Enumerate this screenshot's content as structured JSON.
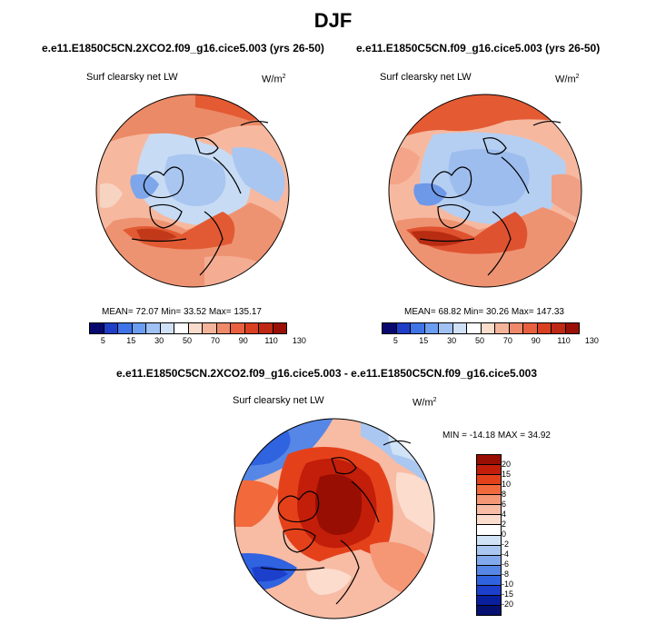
{
  "figure": {
    "season": "DJF",
    "panel_left": {
      "case": "e.e11.E1850C5CN.2XCO2.f09_g16.cice5.003 (yrs 26-50)",
      "variable": "Surf clearsky net LW",
      "units": "W/m",
      "units_exp": "2",
      "stats": "MEAN=  72.07  Min=  33.52  Max= 135.17"
    },
    "panel_right": {
      "case": "e.e11.E1850C5CN.f09_g16.cice5.003 (yrs 26-50)",
      "variable": "Surf clearsky net LW",
      "units": "W/m",
      "units_exp": "2",
      "stats": "MEAN=  68.82  Min=  30.26  Max= 147.33"
    },
    "panel_diff": {
      "case": "e.e11.E1850C5CN.2XCO2.f09_g16.cice5.003 - e.e11.E1850C5CN.f09_g16.cice5.003",
      "variable": "Surf clearsky net LW",
      "units": "W/m",
      "units_exp": "2",
      "stats": "MIN = -14.18 MAX =  34.92"
    },
    "colorbar_abs": {
      "ticks": [
        "5",
        "15",
        "30",
        "50",
        "70",
        "90",
        "110",
        "130"
      ],
      "colors": [
        "#08086e",
        "#1f3ec7",
        "#3f73e6",
        "#6b9df0",
        "#9fc1f3",
        "#cfe0f7",
        "#ffffff",
        "#f9dccb",
        "#f4b49a",
        "#ee8a6a",
        "#e8603f",
        "#d9401f",
        "#bf2812",
        "#9a0f06"
      ]
    },
    "colorbar_diff": {
      "ticks": [
        "20",
        "15",
        "10",
        "8",
        "6",
        "4",
        "2",
        "0",
        "-2",
        "-4",
        "-6",
        "-8",
        "-10",
        "-15",
        "-20"
      ],
      "colors": [
        "#990e02",
        "#c21e0a",
        "#e4411b",
        "#f26a3c",
        "#f59675",
        "#f8bba4",
        "#fbdccd",
        "#ffffff",
        "#d0e2f5",
        "#a9c7f0",
        "#82a9ec",
        "#5687e6",
        "#3063df",
        "#1c3fcc",
        "#0a1f9e",
        "#051070"
      ]
    }
  }
}
